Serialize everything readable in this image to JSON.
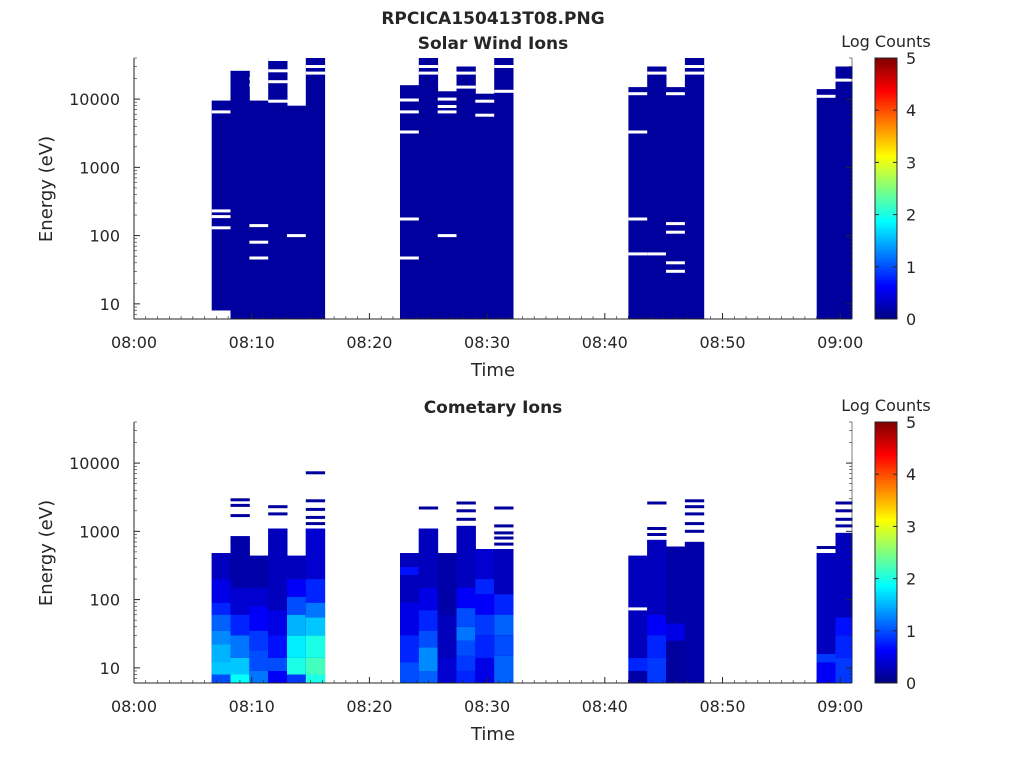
{
  "figure": {
    "title": "RPCICA150413T08.PNG"
  },
  "chart_data": [
    {
      "type": "heatmap",
      "title": "Solar Wind Ions",
      "xlabel": "Time",
      "ylabel": "Energy (eV)",
      "x_ticks": [
        "08:00",
        "08:10",
        "08:20",
        "08:30",
        "08:40",
        "08:50",
        "09:00"
      ],
      "xlim_minutes": [
        0,
        61
      ],
      "y_ticks": [
        10,
        100,
        1000,
        10000
      ],
      "y_tick_labels": [
        "10",
        "100",
        "1000",
        "10000"
      ],
      "ylim": [
        6,
        40000
      ],
      "yscale": "log",
      "colorbar": {
        "label": "Log Counts",
        "range": [
          0,
          5
        ],
        "ticks": [
          "0",
          "1",
          "2",
          "3",
          "4",
          "5"
        ],
        "colormap": "jet"
      },
      "segments": [
        {
          "t0": 6.6,
          "t1": 8.2,
          "elo": 8,
          "ehi": 9500,
          "level": 0.15,
          "gaps": [
            6500,
            230,
            190,
            130
          ]
        },
        {
          "t0": 8.2,
          "t1": 9.8,
          "elo": 6,
          "ehi": 26000,
          "level": 0.15,
          "gaps": []
        },
        {
          "t0": 9.8,
          "t1": 11.4,
          "elo": 6,
          "ehi": 9500,
          "level": 0.15,
          "gaps": [
            20000,
            16000,
            140,
            47,
            80
          ]
        },
        {
          "t0": 11.4,
          "t1": 13.0,
          "elo": 6,
          "ehi": 40000,
          "level": 0.15,
          "gaps": [
            38000,
            26000,
            18000,
            9300
          ]
        },
        {
          "t0": 13.0,
          "t1": 14.6,
          "elo": 6,
          "ehi": 8000,
          "level": 0.15,
          "gaps": [
            100
          ]
        },
        {
          "t0": 14.6,
          "t1": 16.2,
          "elo": 6,
          "ehi": 40000,
          "level": 0.15,
          "gaps": [
            30000,
            24000
          ]
        },
        {
          "t0": 22.6,
          "t1": 24.2,
          "elo": 6,
          "ehi": 16000,
          "level": 0.15,
          "gaps": [
            9700,
            6500,
            3300,
            175,
            47
          ]
        },
        {
          "t0": 24.2,
          "t1": 25.8,
          "elo": 6,
          "ehi": 40000,
          "level": 0.15,
          "gaps": [
            30000,
            24000
          ]
        },
        {
          "t0": 25.8,
          "t1": 27.4,
          "elo": 6,
          "ehi": 13000,
          "level": 0.15,
          "gaps": [
            10000,
            7800,
            6500,
            100
          ]
        },
        {
          "t0": 27.4,
          "t1": 29.0,
          "elo": 6,
          "ehi": 30000,
          "level": 0.15,
          "gaps": [
            24000,
            15000
          ]
        },
        {
          "t0": 29.0,
          "t1": 30.6,
          "elo": 6,
          "ehi": 12000,
          "level": 0.15,
          "gaps": [
            9300,
            5800
          ]
        },
        {
          "t0": 30.6,
          "t1": 32.2,
          "elo": 6,
          "ehi": 40000,
          "level": 0.15,
          "gaps": [
            30000,
            13000
          ]
        },
        {
          "t0": 42.0,
          "t1": 43.6,
          "elo": 6,
          "ehi": 15000,
          "level": 0.15,
          "gaps": [
            12000,
            3300,
            175,
            54
          ]
        },
        {
          "t0": 43.6,
          "t1": 45.2,
          "elo": 6,
          "ehi": 30000,
          "level": 0.15,
          "gaps": [
            24000,
            54
          ]
        },
        {
          "t0": 45.2,
          "t1": 46.8,
          "elo": 6,
          "ehi": 15000,
          "level": 0.15,
          "gaps": [
            12000,
            150,
            112,
            40,
            30
          ]
        },
        {
          "t0": 46.8,
          "t1": 48.4,
          "elo": 6,
          "ehi": 40000,
          "level": 0.15,
          "gaps": [
            30000,
            24000
          ]
        },
        {
          "t0": 58.0,
          "t1": 59.6,
          "elo": 6,
          "ehi": 14000,
          "level": 0.15,
          "gaps": [
            11000
          ]
        },
        {
          "t0": 59.6,
          "t1": 61.0,
          "elo": 6,
          "ehi": 30000,
          "level": 0.15,
          "gaps": [
            19000
          ]
        }
      ]
    },
    {
      "type": "heatmap",
      "title": "Cometary Ions",
      "xlabel": "Time",
      "ylabel": "Energy (eV)",
      "x_ticks": [
        "08:00",
        "08:10",
        "08:20",
        "08:30",
        "08:40",
        "08:50",
        "09:00"
      ],
      "xlim_minutes": [
        0,
        61
      ],
      "y_ticks": [
        10,
        100,
        1000,
        10000
      ],
      "y_tick_labels": [
        "10",
        "100",
        "1000",
        "10000"
      ],
      "ylim": [
        6,
        40000
      ],
      "yscale": "log",
      "colorbar": {
        "label": "Log Counts",
        "range": [
          0,
          5
        ],
        "ticks": [
          "0",
          "1",
          "2",
          "3",
          "4",
          "5"
        ],
        "colormap": "jet"
      },
      "segments": [
        {
          "t0": 6.6,
          "t1": 8.2,
          "elo": 6,
          "ehi": 480,
          "levels": [
            [
              6,
              1.0
            ],
            [
              8,
              1.6
            ],
            [
              12,
              1.5
            ],
            [
              22,
              1.3
            ],
            [
              35,
              1.1
            ],
            [
              60,
              0.8
            ],
            [
              90,
              0.5
            ],
            [
              200,
              0.3
            ]
          ],
          "tops": []
        },
        {
          "t0": 8.2,
          "t1": 9.8,
          "elo": 6,
          "ehi": 850,
          "levels": [
            [
              6,
              1.9
            ],
            [
              8,
              1.6
            ],
            [
              14,
              1.2
            ],
            [
              30,
              0.8
            ],
            [
              60,
              0.4
            ],
            [
              150,
              0.2
            ]
          ],
          "tops": [
            2900,
            2400,
            1700
          ]
        },
        {
          "t0": 9.8,
          "t1": 11.4,
          "elo": 6,
          "ehi": 440,
          "levels": [
            [
              6,
              1.2
            ],
            [
              9,
              1.0
            ],
            [
              18,
              0.9
            ],
            [
              35,
              0.6
            ],
            [
              80,
              0.4
            ],
            [
              150,
              0.2
            ]
          ],
          "tops": []
        },
        {
          "t0": 11.4,
          "t1": 13.0,
          "elo": 6,
          "ehi": 1100,
          "levels": [
            [
              6,
              0.6
            ],
            [
              9,
              1.0
            ],
            [
              14,
              0.7
            ],
            [
              30,
              0.5
            ],
            [
              70,
              0.3
            ]
          ],
          "tops": [
            2300,
            1800
          ]
        },
        {
          "t0": 13.0,
          "t1": 14.6,
          "elo": 6,
          "ehi": 440,
          "levels": [
            [
              6,
              0.9
            ],
            [
              8,
              2.0
            ],
            [
              14,
              1.8
            ],
            [
              30,
              1.5
            ],
            [
              60,
              1.0
            ],
            [
              110,
              0.6
            ],
            [
              200,
              0.3
            ]
          ],
          "tops": []
        },
        {
          "t0": 14.6,
          "t1": 16.2,
          "elo": 6,
          "ehi": 1100,
          "levels": [
            [
              6,
              2.0
            ],
            [
              8,
              2.2
            ],
            [
              14,
              2.0
            ],
            [
              30,
              1.6
            ],
            [
              55,
              1.2
            ],
            [
              90,
              0.8
            ],
            [
              200,
              0.4
            ]
          ],
          "tops": [
            7200,
            2800,
            2100,
            1600,
            1300
          ]
        },
        {
          "t0": 22.6,
          "t1": 24.2,
          "elo": 6,
          "ehi": 480,
          "levels": [
            [
              6,
              1.0
            ],
            [
              12,
              0.8
            ],
            [
              30,
              0.5
            ],
            [
              90,
              0.3
            ],
            [
              230,
              0.7
            ],
            [
              300,
              0.3
            ]
          ],
          "tops": []
        },
        {
          "t0": 24.2,
          "t1": 25.8,
          "elo": 6,
          "ehi": 1100,
          "levels": [
            [
              6,
              1.1
            ],
            [
              9,
              1.3
            ],
            [
              20,
              1.0
            ],
            [
              35,
              0.8
            ],
            [
              70,
              0.5
            ],
            [
              150,
              0.3
            ]
          ],
          "tops": [
            2200
          ]
        },
        {
          "t0": 25.8,
          "t1": 27.4,
          "elo": 6,
          "ehi": 480,
          "levels": [
            [
              6,
              0.4
            ],
            [
              14,
              0.3
            ],
            [
              60,
              0.2
            ]
          ],
          "tops": []
        },
        {
          "t0": 27.4,
          "t1": 29.0,
          "elo": 6,
          "ehi": 1200,
          "levels": [
            [
              6,
              0.8
            ],
            [
              9,
              0.9
            ],
            [
              15,
              1.0
            ],
            [
              25,
              1.2
            ],
            [
              40,
              1.0
            ],
            [
              75,
              0.6
            ],
            [
              150,
              0.3
            ]
          ],
          "tops": [
            2600,
            2000,
            1500
          ]
        },
        {
          "t0": 29.0,
          "t1": 30.6,
          "elo": 6,
          "ehi": 550,
          "levels": [
            [
              6,
              0.5
            ],
            [
              14,
              0.8
            ],
            [
              30,
              0.9
            ],
            [
              60,
              0.6
            ],
            [
              120,
              0.8
            ],
            [
              200,
              0.4
            ]
          ],
          "tops": []
        },
        {
          "t0": 30.6,
          "t1": 32.2,
          "elo": 6,
          "ehi": 550,
          "levels": [
            [
              6,
              1.1
            ],
            [
              15,
              1.0
            ],
            [
              30,
              1.1
            ],
            [
              60,
              0.8
            ],
            [
              120,
              0.3
            ]
          ],
          "tops": [
            2200,
            1200,
            950,
            800,
            650
          ]
        },
        {
          "t0": 42.0,
          "t1": 43.6,
          "elo": 6,
          "ehi": 440,
          "levels": [
            [
              6,
              0.2
            ],
            [
              9,
              0.8
            ],
            [
              14,
              0.3
            ]
          ],
          "tops": [],
          "gaps": [
            73
          ]
        },
        {
          "t0": 43.6,
          "t1": 45.2,
          "elo": 6,
          "ehi": 750,
          "levels": [
            [
              6,
              0.9
            ],
            [
              14,
              0.8
            ],
            [
              30,
              0.6
            ],
            [
              60,
              0.3
            ]
          ],
          "tops": [
            2600,
            1100,
            900
          ]
        },
        {
          "t0": 45.2,
          "t1": 46.8,
          "elo": 6,
          "ehi": 600,
          "levels": [
            [
              6,
              0.15
            ],
            [
              25,
              0.5
            ],
            [
              45,
              0.2
            ]
          ],
          "tops": []
        },
        {
          "t0": 46.8,
          "t1": 48.4,
          "elo": 6,
          "ehi": 700,
          "levels": [
            [
              6,
              0.2
            ]
          ],
          "tops": [
            2800,
            2300,
            1800,
            1300,
            1000
          ]
        },
        {
          "t0": 58.0,
          "t1": 59.6,
          "elo": 6,
          "ehi": 480,
          "levels": [
            [
              6,
              0.6
            ],
            [
              12,
              0.9
            ],
            [
              16,
              0.3
            ]
          ],
          "tops": [
            580
          ]
        },
        {
          "t0": 59.6,
          "t1": 61.0,
          "elo": 6,
          "ehi": 950,
          "levels": [
            [
              6,
              0.9
            ],
            [
              14,
              0.8
            ],
            [
              30,
              0.7
            ],
            [
              55,
              0.3
            ]
          ],
          "tops": [
            2600,
            2000,
            1500,
            1200
          ]
        }
      ]
    }
  ]
}
